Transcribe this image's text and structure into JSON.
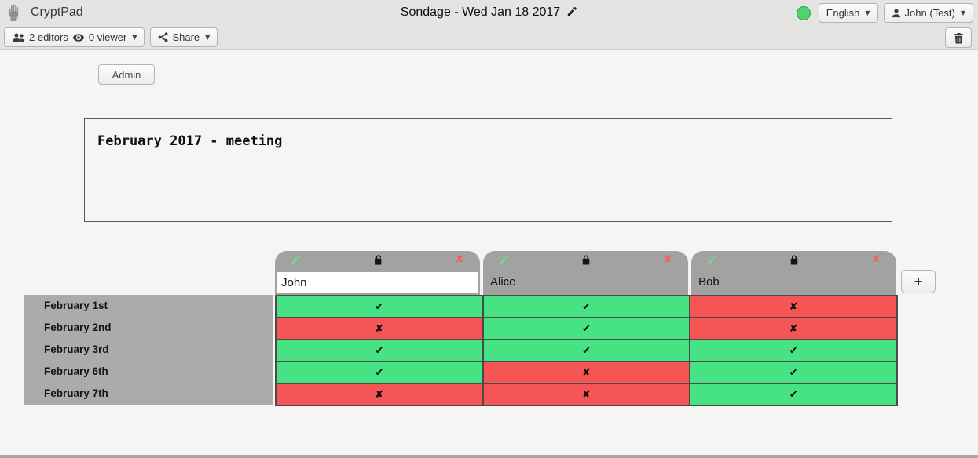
{
  "app": {
    "brand": "CryptPad",
    "title": "Sondage - Wed Jan 18 2017",
    "language": "English",
    "user": "John (Test)",
    "connection_status_color": "#4ed36f"
  },
  "toolbar": {
    "editors_count": "2 editors",
    "viewers_count": "0 viewer",
    "share_label": "Share"
  },
  "icons": {
    "caret_down": "▼",
    "remove": "✘"
  },
  "page": {
    "admin_button": "Admin",
    "description": "February 2017 - meeting"
  },
  "poll": {
    "columns": [
      {
        "name": "John",
        "locked": false,
        "editable": true
      },
      {
        "name": "Alice",
        "locked": true,
        "editable": false
      },
      {
        "name": "Bob",
        "locked": true,
        "editable": false
      }
    ],
    "rows": [
      "February 1st",
      "February 2nd",
      "February 3rd",
      "February 6th",
      "February 7th"
    ],
    "votes": [
      [
        "yes",
        "yes",
        "no"
      ],
      [
        "no",
        "yes",
        "no"
      ],
      [
        "yes",
        "yes",
        "yes"
      ],
      [
        "yes",
        "no",
        "yes"
      ],
      [
        "no",
        "no",
        "yes"
      ]
    ],
    "glyphs": {
      "yes": "✔",
      "no": "✘"
    },
    "colors": {
      "yes": "#47e283",
      "no": "#f65555"
    },
    "icon_colors": {
      "edit": "#6edc8d",
      "remove": "#f25f5f"
    },
    "add_column_label": "+"
  }
}
